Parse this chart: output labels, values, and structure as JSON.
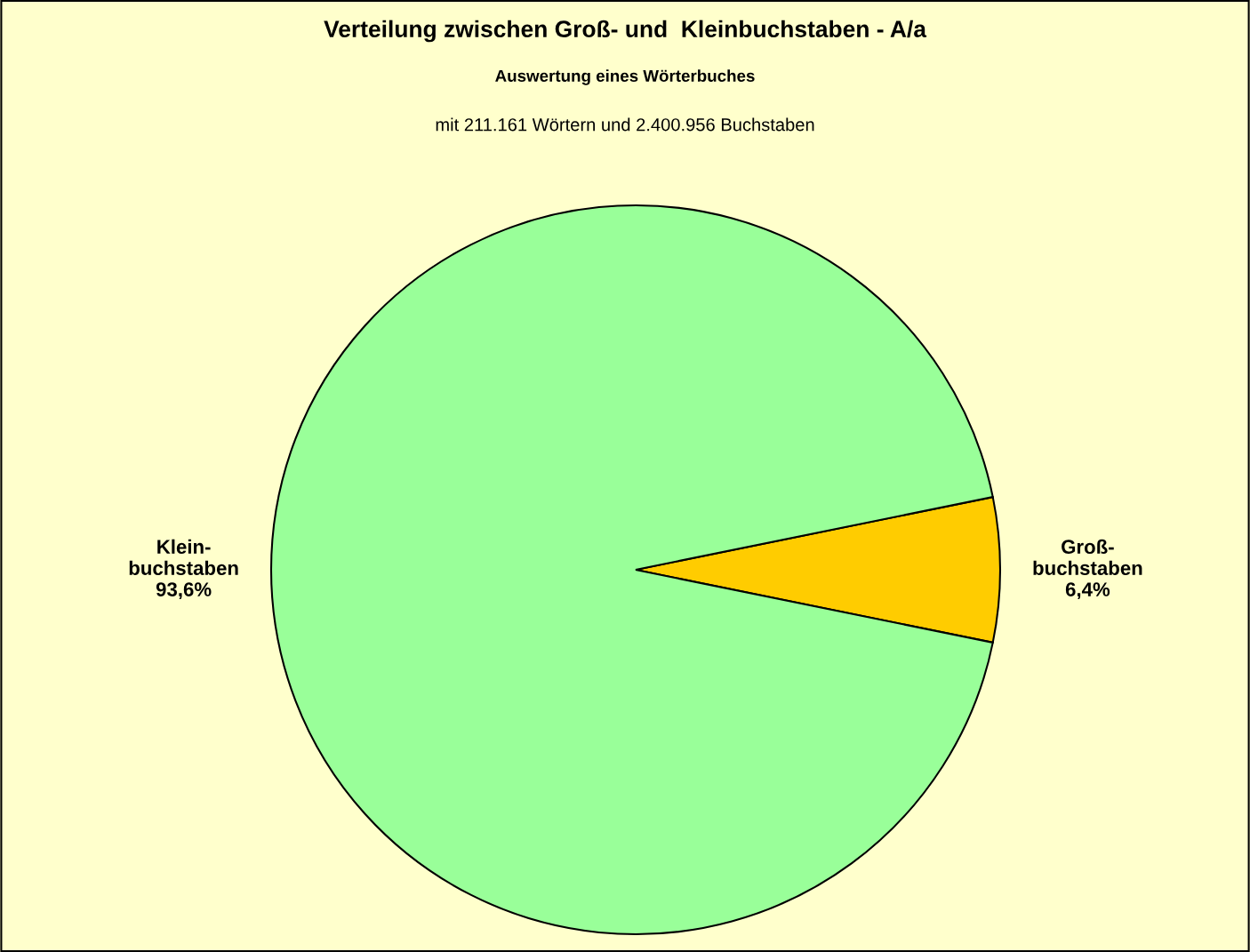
{
  "chart_data": {
    "type": "pie",
    "title": "Verteilung zwischen Groß- und  Kleinbuchstaben - A/a",
    "subtitle": "Auswertung eines Wörterbuches",
    "annotations": [
      "mit 211.161 Wörtern und 2.400.956 Buchstaben"
    ],
    "categories": [
      "Groß-\nbuchstaben",
      "Klein-\nbuchstaben"
    ],
    "values": [
      6.4,
      93.6
    ],
    "value_labels": [
      "6,4%",
      "93,6%"
    ],
    "colors": [
      "#ffcc00",
      "#99ff99"
    ],
    "legend": false
  }
}
